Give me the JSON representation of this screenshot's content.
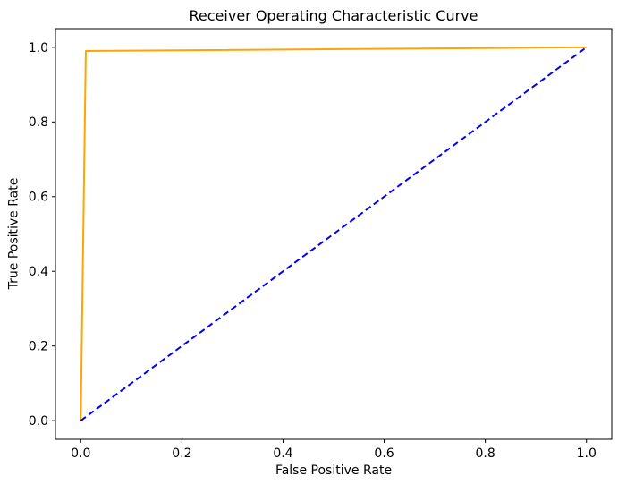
{
  "chart_data": {
    "type": "line",
    "title": "Receiver Operating Characteristic Curve",
    "xlabel": "False Positive Rate",
    "ylabel": "True Positive Rate",
    "xlim": [
      -0.05,
      1.05
    ],
    "ylim": [
      -0.05,
      1.05
    ],
    "xticks": [
      0.0,
      0.2,
      0.4,
      0.6,
      0.8,
      1.0
    ],
    "yticks": [
      0.0,
      0.2,
      0.4,
      0.6,
      0.8,
      1.0
    ],
    "xticklabels": [
      "0.0",
      "0.2",
      "0.4",
      "0.6",
      "0.8",
      "1.0"
    ],
    "yticklabels": [
      "0.0",
      "0.2",
      "0.4",
      "0.6",
      "0.8",
      "1.0"
    ],
    "grid": false,
    "legend": null,
    "colors": {
      "roc_curve": "#FFA500",
      "chance_line": "#0000FF",
      "spines": "#000000",
      "text": "#000000",
      "background": "#ffffff"
    },
    "series": [
      {
        "name": "roc-curve",
        "color": "#FFA500",
        "style": "solid",
        "linewidth": 2,
        "points": [
          [
            0.0,
            0.0
          ],
          [
            0.01,
            0.99
          ],
          [
            1.0,
            1.0
          ]
        ]
      },
      {
        "name": "chance-diagonal",
        "color": "#0000FF",
        "style": "dashed",
        "linewidth": 2,
        "points": [
          [
            0.0,
            0.0
          ],
          [
            1.0,
            1.0
          ]
        ]
      }
    ]
  }
}
